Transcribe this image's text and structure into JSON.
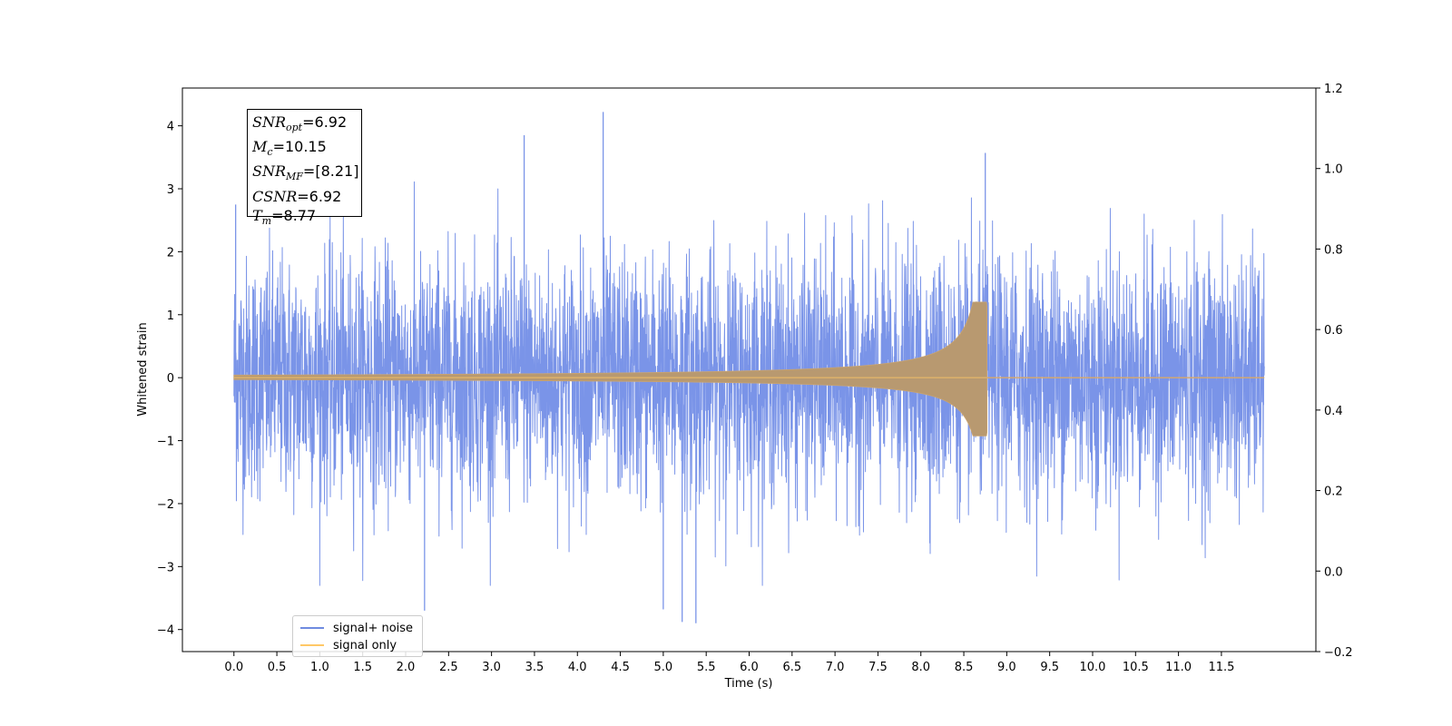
{
  "chart_data": {
    "type": "line",
    "title": "",
    "xlabel": "Time (s)",
    "ylabel": "Whitened strain",
    "xlim": [
      -0.6,
      12.6
    ],
    "ylim": [
      -4.35,
      4.6
    ],
    "y2lim": [
      -0.2,
      1.2
    ],
    "xticks": [
      "0.0",
      "0.5",
      "1.0",
      "1.5",
      "2.0",
      "2.5",
      "3.0",
      "3.5",
      "4.0",
      "4.5",
      "5.0",
      "5.5",
      "6.0",
      "6.5",
      "7.0",
      "7.5",
      "8.0",
      "8.5",
      "9.0",
      "9.5",
      "10.0",
      "10.5",
      "11.0",
      "11.5"
    ],
    "yticks": [
      "4",
      "3",
      "2",
      "1",
      "0",
      "−1",
      "−2",
      "−3",
      "−4"
    ],
    "y2ticks": [
      "1.2",
      "1.0",
      "0.8",
      "0.6",
      "0.4",
      "0.2",
      "0.0",
      "−0.2"
    ],
    "series": [
      {
        "name": "signal+ noise",
        "color": "#7a94e8",
        "description_points": {
          "t_range": [
            0.0,
            12.0
          ],
          "amplitude_sigma": 1.0,
          "extreme_peaks": [
            {
              "t": 4.3,
              "y": 4.22
            },
            {
              "t": 3.38,
              "y": 3.85
            },
            {
              "t": 8.75,
              "y": 3.57
            },
            {
              "t": 2.22,
              "y": -3.7
            },
            {
              "t": 5.22,
              "y": -3.88
            },
            {
              "t": 5.38,
              "y": -3.9
            },
            {
              "t": 5.0,
              "y": -3.68
            },
            {
              "t": 0.02,
              "y": 2.75
            }
          ]
        }
      },
      {
        "name": "signal only",
        "color": "#ffc867",
        "chirp": {
          "t_start": 0.0,
          "t_merge": 8.77,
          "t_end": 12.0,
          "peak_upper": 1.13,
          "peak_lower": -0.87
        }
      }
    ],
    "legend_position": "lower-left",
    "annotation": {
      "lines": [
        {
          "sym": "SNR",
          "sub": "opt",
          "val": "=6.92"
        },
        {
          "sym": "M",
          "sub": "c",
          "val": "=10.15"
        },
        {
          "sym": "SNR",
          "sub": "MF",
          "val": "=[8.21]"
        },
        {
          "sym": "CSNR",
          "sub": "",
          "val": "=6.92"
        },
        {
          "sym": "T",
          "sub": "m",
          "val": "=8.77"
        }
      ]
    }
  },
  "legend": {
    "item1": "signal+ noise",
    "item2": "signal only"
  }
}
